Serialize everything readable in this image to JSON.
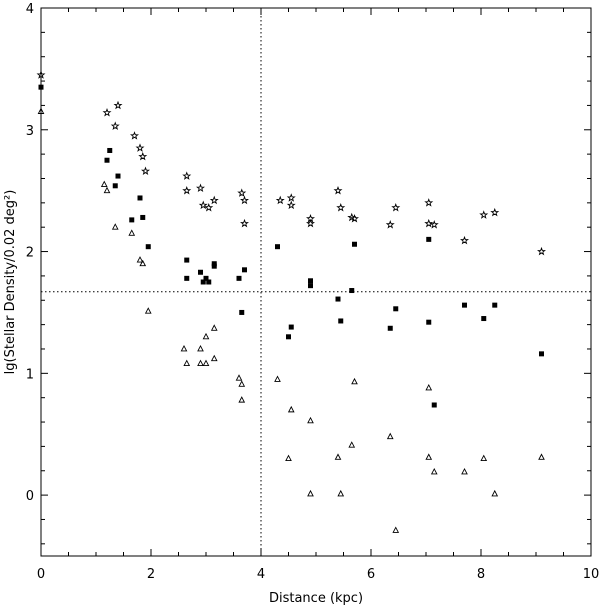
{
  "chart_data": {
    "type": "scatter",
    "title": "",
    "xlabel": "Distance (kpc)",
    "ylabel": "lg(Stellar Density/0.02 deg²)",
    "xlim": [
      0,
      10
    ],
    "ylim": [
      -0.5,
      4
    ],
    "xticks": [
      0,
      2,
      4,
      6,
      8,
      10
    ],
    "yticks": [
      0,
      1,
      2,
      3,
      4
    ],
    "xtick_labels": [
      "0",
      "2",
      "4",
      "6",
      "8",
      "10"
    ],
    "ytick_labels": [
      "0",
      "1",
      "2",
      "3",
      "4"
    ],
    "grid": false,
    "reference_lines": {
      "vertical_x": 4.0,
      "horizontal_y": 1.67
    },
    "series": [
      {
        "name": "stars",
        "marker": "star",
        "points": [
          [
            0.0,
            3.45
          ],
          [
            1.2,
            3.14
          ],
          [
            1.4,
            3.2
          ],
          [
            1.35,
            3.03
          ],
          [
            1.7,
            2.95
          ],
          [
            1.8,
            2.85
          ],
          [
            1.85,
            2.78
          ],
          [
            1.9,
            2.66
          ],
          [
            2.65,
            2.62
          ],
          [
            2.65,
            2.5
          ],
          [
            2.9,
            2.52
          ],
          [
            2.95,
            2.38
          ],
          [
            3.05,
            2.36
          ],
          [
            3.15,
            2.42
          ],
          [
            3.65,
            2.48
          ],
          [
            3.7,
            2.42
          ],
          [
            3.7,
            2.23
          ],
          [
            4.35,
            2.42
          ],
          [
            4.55,
            2.44
          ],
          [
            4.55,
            2.38
          ],
          [
            4.9,
            2.27
          ],
          [
            4.9,
            2.23
          ],
          [
            5.4,
            2.5
          ],
          [
            5.45,
            2.36
          ],
          [
            5.65,
            2.28
          ],
          [
            5.7,
            2.27
          ],
          [
            6.35,
            2.22
          ],
          [
            6.45,
            2.36
          ],
          [
            7.05,
            2.4
          ],
          [
            7.05,
            2.23
          ],
          [
            7.15,
            2.22
          ],
          [
            7.7,
            2.09
          ],
          [
            8.05,
            2.3
          ],
          [
            8.25,
            2.32
          ],
          [
            9.1,
            2.0
          ]
        ]
      },
      {
        "name": "filled squares",
        "marker": "square",
        "points": [
          [
            0.0,
            3.35
          ],
          [
            1.2,
            2.75
          ],
          [
            1.25,
            2.83
          ],
          [
            1.35,
            2.54
          ],
          [
            1.4,
            2.62
          ],
          [
            1.65,
            2.26
          ],
          [
            1.8,
            2.44
          ],
          [
            1.85,
            2.28
          ],
          [
            1.95,
            2.04
          ],
          [
            2.65,
            1.78
          ],
          [
            2.65,
            1.93
          ],
          [
            2.9,
            1.83
          ],
          [
            2.95,
            1.75
          ],
          [
            3.0,
            1.78
          ],
          [
            3.05,
            1.75
          ],
          [
            3.15,
            1.88
          ],
          [
            3.15,
            1.9
          ],
          [
            3.6,
            1.78
          ],
          [
            3.65,
            1.5
          ],
          [
            3.7,
            1.85
          ],
          [
            4.3,
            2.04
          ],
          [
            4.5,
            1.3
          ],
          [
            4.55,
            1.38
          ],
          [
            4.9,
            1.72
          ],
          [
            4.9,
            1.76
          ],
          [
            5.4,
            1.61
          ],
          [
            5.45,
            1.43
          ],
          [
            5.65,
            1.68
          ],
          [
            5.7,
            2.06
          ],
          [
            6.35,
            1.37
          ],
          [
            6.45,
            1.53
          ],
          [
            7.05,
            1.42
          ],
          [
            7.05,
            2.1
          ],
          [
            7.15,
            0.74
          ],
          [
            7.7,
            1.56
          ],
          [
            8.05,
            1.45
          ],
          [
            8.25,
            1.56
          ],
          [
            9.1,
            1.16
          ]
        ]
      },
      {
        "name": "triangles",
        "marker": "triangle",
        "points": [
          [
            0.0,
            3.15
          ],
          [
            1.15,
            2.55
          ],
          [
            1.2,
            2.5
          ],
          [
            1.35,
            2.2
          ],
          [
            1.65,
            2.15
          ],
          [
            1.8,
            1.93
          ],
          [
            1.85,
            1.9
          ],
          [
            1.95,
            1.51
          ],
          [
            2.6,
            1.2
          ],
          [
            2.65,
            1.08
          ],
          [
            2.9,
            1.08
          ],
          [
            2.9,
            1.2
          ],
          [
            3.0,
            1.08
          ],
          [
            3.0,
            1.3
          ],
          [
            3.15,
            1.12
          ],
          [
            3.15,
            1.37
          ],
          [
            3.6,
            0.96
          ],
          [
            3.65,
            0.91
          ],
          [
            3.65,
            0.78
          ],
          [
            4.3,
            0.95
          ],
          [
            4.5,
            0.3
          ],
          [
            4.55,
            0.7
          ],
          [
            4.9,
            0.61
          ],
          [
            4.9,
            0.01
          ],
          [
            5.4,
            0.31
          ],
          [
            5.45,
            0.01
          ],
          [
            5.65,
            0.41
          ],
          [
            5.7,
            0.93
          ],
          [
            6.35,
            0.48
          ],
          [
            6.45,
            -0.29
          ],
          [
            7.05,
            0.88
          ],
          [
            7.05,
            0.31
          ],
          [
            7.15,
            0.19
          ],
          [
            7.7,
            0.19
          ],
          [
            8.05,
            0.3
          ],
          [
            8.25,
            0.01
          ],
          [
            9.1,
            0.31
          ]
        ]
      }
    ]
  }
}
